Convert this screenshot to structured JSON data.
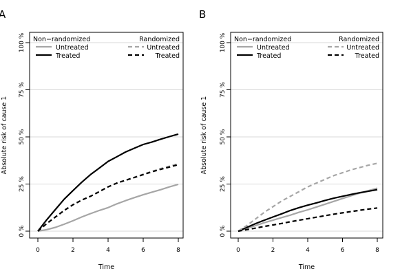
{
  "chart_data": [
    {
      "type": "line",
      "panel_label": "A",
      "xlabel": "Time",
      "ylabel": "Absolute risk of cause 1",
      "xlim": [
        0,
        8
      ],
      "ylim": [
        0,
        100
      ],
      "x_ticks": [
        "0",
        "2",
        "4",
        "6",
        "8"
      ],
      "y_ticks": [
        "0 %",
        "25 %",
        "50 %",
        "75 %",
        "100 %"
      ],
      "grid": "horizontal",
      "legend": {
        "left_title": "Non−randomized",
        "right_title": "Randomized",
        "left_entries": [
          {
            "label": "Untreated",
            "color": "#a6a6a6",
            "style": "solid"
          },
          {
            "label": "Treated",
            "color": "#000000",
            "style": "solid"
          }
        ],
        "right_entries": [
          {
            "label": "Untreated",
            "color": "#a6a6a6",
            "style": "dashed"
          },
          {
            "label": "Treated",
            "color": "#000000",
            "style": "dashed"
          }
        ]
      },
      "series": [
        {
          "color": "#a6a6a6",
          "style": "solid",
          "x": [
            0,
            0.5,
            1,
            1.5,
            2,
            2.5,
            3,
            3.5,
            4,
            4.5,
            5,
            5.5,
            6,
            6.5,
            7,
            7.5,
            8
          ],
          "y": [
            0,
            0.8,
            2,
            3.7,
            5.5,
            7.5,
            9.3,
            11,
            12.5,
            14.5,
            16.2,
            17.8,
            19.3,
            20.7,
            22,
            23.5,
            24.8
          ]
        },
        {
          "color": "#000000",
          "style": "solid",
          "x": [
            0,
            0.5,
            1,
            1.5,
            2,
            2.5,
            3,
            3.5,
            4,
            4.5,
            5,
            5.5,
            6,
            6.5,
            7,
            7.5,
            8
          ],
          "y": [
            0,
            6,
            11.5,
            17,
            21.5,
            26,
            30,
            33.5,
            37,
            39.5,
            42,
            44,
            46,
            47.3,
            48.8,
            50.2,
            51.5
          ]
        },
        {
          "color": "#a6a6a6",
          "style": "dashed",
          "x": [
            0,
            0.5,
            1,
            1.5,
            2,
            2.5,
            3,
            3.5,
            4,
            4.5,
            5,
            5.5,
            6,
            6.5,
            7,
            7.5,
            8
          ],
          "y": [
            0,
            4,
            7.5,
            11,
            14,
            16.5,
            18.5,
            21,
            23.5,
            25.5,
            27,
            28.5,
            30.2,
            31.7,
            33.2,
            34.5,
            35.8
          ]
        },
        {
          "color": "#000000",
          "style": "dashed",
          "x": [
            0,
            0.5,
            1,
            1.5,
            2,
            2.5,
            3,
            3.5,
            4,
            4.5,
            5,
            5.5,
            6,
            6.5,
            7,
            7.5,
            8
          ],
          "y": [
            0,
            4,
            7.5,
            11,
            14,
            16.5,
            18.5,
            21,
            23.5,
            25.5,
            27,
            28.5,
            30,
            31.5,
            32.8,
            34,
            35.3
          ]
        }
      ]
    },
    {
      "type": "line",
      "panel_label": "B",
      "xlabel": "Time",
      "ylabel": "Absolute risk of cause 1",
      "xlim": [
        0,
        8
      ],
      "ylim": [
        0,
        100
      ],
      "x_ticks": [
        "0",
        "2",
        "4",
        "6",
        "8"
      ],
      "y_ticks": [
        "0 %",
        "25 %",
        "50 %",
        "75 %",
        "100 %"
      ],
      "grid": "horizontal",
      "legend": {
        "left_title": "Non−randomized",
        "right_title": "Randomized",
        "left_entries": [
          {
            "label": "Untreated",
            "color": "#a6a6a6",
            "style": "solid"
          },
          {
            "label": "Treated",
            "color": "#000000",
            "style": "solid"
          }
        ],
        "right_entries": [
          {
            "label": "Untreated",
            "color": "#a6a6a6",
            "style": "dashed"
          },
          {
            "label": "Treated",
            "color": "#000000",
            "style": "dashed"
          }
        ]
      },
      "series": [
        {
          "color": "#a6a6a6",
          "style": "solid",
          "x": [
            0,
            0.5,
            1,
            1.5,
            2,
            2.5,
            3,
            3.5,
            4,
            4.5,
            5,
            5.5,
            6,
            6.5,
            7,
            7.5,
            8
          ],
          "y": [
            0,
            1.5,
            3,
            4.5,
            5.8,
            7.2,
            8.5,
            10,
            11.3,
            12.8,
            14.3,
            15.8,
            17.3,
            18.8,
            20.2,
            21.5,
            22.8
          ]
        },
        {
          "color": "#000000",
          "style": "solid",
          "x": [
            0,
            0.5,
            1,
            1.5,
            2,
            2.5,
            3,
            3.5,
            4,
            4.5,
            5,
            5.5,
            6,
            6.5,
            7,
            7.5,
            8
          ],
          "y": [
            0,
            2,
            4,
            5.8,
            7.5,
            9.2,
            11,
            12.5,
            13.8,
            15,
            16.3,
            17.5,
            18.5,
            19.5,
            20.4,
            21.2,
            22
          ]
        },
        {
          "color": "#a6a6a6",
          "style": "dashed",
          "x": [
            0,
            0.5,
            1,
            1.5,
            2,
            2.5,
            3,
            3.5,
            4,
            4.5,
            5,
            5.5,
            6,
            6.5,
            7,
            7.5,
            8
          ],
          "y": [
            0,
            3,
            6.5,
            10,
            13,
            16,
            18.5,
            21,
            23.5,
            25.5,
            27.5,
            29.5,
            31,
            32.5,
            33.8,
            35,
            36
          ]
        },
        {
          "color": "#000000",
          "style": "dashed",
          "x": [
            0,
            0.5,
            1,
            1.5,
            2,
            2.5,
            3,
            3.5,
            4,
            4.5,
            5,
            5.5,
            6,
            6.5,
            7,
            7.5,
            8
          ],
          "y": [
            0,
            0.8,
            1.6,
            2.5,
            3.3,
            4.1,
            5,
            5.8,
            6.6,
            7.4,
            8.2,
            9,
            9.7,
            10.4,
            11.1,
            11.7,
            12.3
          ]
        }
      ]
    }
  ]
}
